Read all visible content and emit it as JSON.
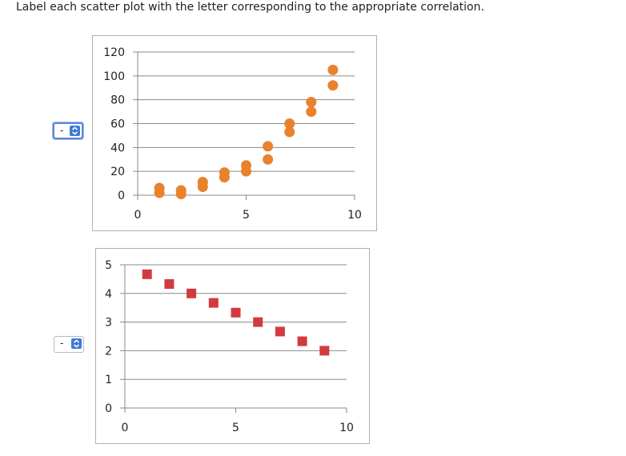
{
  "instruction": "Label each scatter plot with the letter corresponding to the appropriate correlation.",
  "answer_selects": [
    {
      "value": "-",
      "icon": "up-down-arrows-icon",
      "focused": true
    },
    {
      "value": "-",
      "icon": "up-down-arrows-icon",
      "focused": false
    }
  ],
  "colors": {
    "orange": "#e8822c",
    "red": "#d03b3f",
    "grid": "#8a8a8a",
    "select_accent": "#3f7ad6"
  },
  "chart_data": [
    {
      "type": "scatter",
      "marker": "circle",
      "color": "#e8822c",
      "xlim": [
        0,
        10
      ],
      "ylim": [
        0,
        120
      ],
      "x_ticks": [
        "0",
        "5",
        "10"
      ],
      "y_ticks": [
        "0",
        "20",
        "40",
        "60",
        "80",
        "100",
        "120"
      ],
      "grid": true,
      "points": [
        [
          1,
          2
        ],
        [
          1,
          6
        ],
        [
          2,
          1
        ],
        [
          2,
          4
        ],
        [
          3,
          7
        ],
        [
          3,
          11
        ],
        [
          4,
          15
        ],
        [
          4,
          19
        ],
        [
          5,
          20
        ],
        [
          5,
          25
        ],
        [
          6,
          30
        ],
        [
          6,
          41
        ],
        [
          7,
          53
        ],
        [
          7,
          60
        ],
        [
          8,
          70
        ],
        [
          8,
          78
        ],
        [
          9,
          92
        ],
        [
          9,
          105
        ]
      ]
    },
    {
      "type": "scatter",
      "marker": "square",
      "color": "#d03b3f",
      "xlim": [
        0,
        10
      ],
      "ylim": [
        0,
        5
      ],
      "x_ticks": [
        "0",
        "5",
        "10"
      ],
      "y_ticks": [
        "0",
        "1",
        "2",
        "3",
        "4",
        "5"
      ],
      "grid": true,
      "points": [
        [
          1,
          4.67
        ],
        [
          2,
          4.33
        ],
        [
          3,
          4
        ],
        [
          4,
          3.67
        ],
        [
          5,
          3.33
        ],
        [
          6,
          3
        ],
        [
          7,
          2.67
        ],
        [
          8,
          2.33
        ],
        [
          9,
          2
        ]
      ]
    }
  ]
}
